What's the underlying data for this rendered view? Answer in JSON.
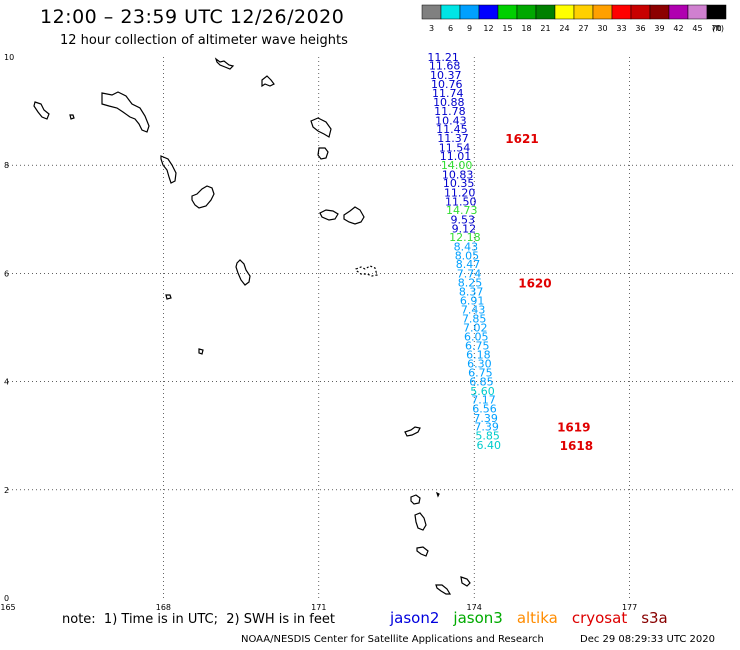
{
  "header": {
    "title": "12:00 – 23:59 UTC 12/26/2020",
    "subtitle": "12 hour collection of altimeter wave heights"
  },
  "legend": {
    "unit": "(ft)",
    "bins": [
      {
        "label": "3",
        "color": "#808080"
      },
      {
        "label": "6",
        "color": "#00e5e5"
      },
      {
        "label": "9",
        "color": "#00a0ff"
      },
      {
        "label": "12",
        "color": "#0000ff"
      },
      {
        "label": "15",
        "color": "#00d000"
      },
      {
        "label": "18",
        "color": "#00a800"
      },
      {
        "label": "21",
        "color": "#008000"
      },
      {
        "label": "24",
        "color": "#ffff00"
      },
      {
        "label": "27",
        "color": "#ffd000"
      },
      {
        "label": "30",
        "color": "#ffa000"
      },
      {
        "label": "33",
        "color": "#ff0000"
      },
      {
        "label": "36",
        "color": "#c80000"
      },
      {
        "label": "39",
        "color": "#8c0000"
      },
      {
        "label": "42",
        "color": "#b000b0"
      },
      {
        "label": "45",
        "color": "#d080d0"
      },
      {
        "label": "70",
        "color": "#000000"
      }
    ]
  },
  "axes": {
    "lon_labels": [
      "165",
      "168",
      "171",
      "174",
      "177"
    ],
    "lat_labels": [
      "0",
      "2",
      "4",
      "6",
      "8",
      "10"
    ]
  },
  "observations": [
    {
      "lon": 173.4,
      "lat": 10.0,
      "value": "11.21",
      "color": "#0000cc"
    },
    {
      "lon": 173.43,
      "lat": 9.84,
      "value": "11.68",
      "color": "#0000cc"
    },
    {
      "lon": 173.45,
      "lat": 9.67,
      "value": "10.37",
      "color": "#0000cc"
    },
    {
      "lon": 173.47,
      "lat": 9.5,
      "value": "10.76",
      "color": "#0000cc"
    },
    {
      "lon": 173.49,
      "lat": 9.33,
      "value": "11.74",
      "color": "#0000cc"
    },
    {
      "lon": 173.51,
      "lat": 9.17,
      "value": "10.88",
      "color": "#0000cc"
    },
    {
      "lon": 173.53,
      "lat": 9.0,
      "value": "11.78",
      "color": "#0000cc"
    },
    {
      "lon": 173.55,
      "lat": 8.83,
      "value": "10.43",
      "color": "#0000cc"
    },
    {
      "lon": 173.57,
      "lat": 8.67,
      "value": "11.45",
      "color": "#0000cc"
    },
    {
      "lon": 173.59,
      "lat": 8.5,
      "value": "11.37",
      "color": "#0000cc"
    },
    {
      "lon": 173.62,
      "lat": 8.33,
      "value": "11.54",
      "color": "#0000cc"
    },
    {
      "lon": 173.64,
      "lat": 8.17,
      "value": "11.01",
      "color": "#0000cc"
    },
    {
      "lon": 173.66,
      "lat": 8.0,
      "value": "14.00",
      "color": "#33dd33"
    },
    {
      "lon": 173.68,
      "lat": 7.83,
      "value": "10.83",
      "color": "#0000cc"
    },
    {
      "lon": 173.7,
      "lat": 7.67,
      "value": "10.35",
      "color": "#0000cc"
    },
    {
      "lon": 173.72,
      "lat": 7.5,
      "value": "11.20",
      "color": "#0000cc"
    },
    {
      "lon": 173.74,
      "lat": 7.33,
      "value": "11.50",
      "color": "#0000cc"
    },
    {
      "lon": 173.76,
      "lat": 7.17,
      "value": "14.73",
      "color": "#33dd33"
    },
    {
      "lon": 173.78,
      "lat": 7.0,
      "value": "9.53",
      "color": "#0000cc"
    },
    {
      "lon": 173.8,
      "lat": 6.83,
      "value": "9.12",
      "color": "#0000cc"
    },
    {
      "lon": 173.82,
      "lat": 6.67,
      "value": "12.18",
      "color": "#33dd33"
    },
    {
      "lon": 173.84,
      "lat": 6.5,
      "value": "8.43",
      "color": "#00a0ff"
    },
    {
      "lon": 173.86,
      "lat": 6.33,
      "value": "8.05",
      "color": "#00a0ff"
    },
    {
      "lon": 173.88,
      "lat": 6.17,
      "value": "8.47",
      "color": "#00a0ff"
    },
    {
      "lon": 173.9,
      "lat": 6.0,
      "value": "7.74",
      "color": "#00a0ff"
    },
    {
      "lon": 173.92,
      "lat": 5.83,
      "value": "8.25",
      "color": "#00a0ff"
    },
    {
      "lon": 173.94,
      "lat": 5.67,
      "value": "8.37",
      "color": "#00a0ff"
    },
    {
      "lon": 173.96,
      "lat": 5.5,
      "value": "6.91",
      "color": "#00a0ff"
    },
    {
      "lon": 173.98,
      "lat": 5.33,
      "value": "7.43",
      "color": "#00a0ff"
    },
    {
      "lon": 174.0,
      "lat": 5.17,
      "value": "7.85",
      "color": "#00a0ff"
    },
    {
      "lon": 174.02,
      "lat": 5.0,
      "value": "7.02",
      "color": "#00a0ff"
    },
    {
      "lon": 174.04,
      "lat": 4.83,
      "value": "6.05",
      "color": "#00a0ff"
    },
    {
      "lon": 174.06,
      "lat": 4.67,
      "value": "6.75",
      "color": "#00a0ff"
    },
    {
      "lon": 174.08,
      "lat": 4.5,
      "value": "6.18",
      "color": "#00a0ff"
    },
    {
      "lon": 174.1,
      "lat": 4.33,
      "value": "6.30",
      "color": "#00a0ff"
    },
    {
      "lon": 174.12,
      "lat": 4.17,
      "value": "6.75",
      "color": "#00a0ff"
    },
    {
      "lon": 174.14,
      "lat": 4.0,
      "value": "6.85",
      "color": "#00a0ff"
    },
    {
      "lon": 174.16,
      "lat": 3.83,
      "value": "5.60",
      "color": "#00cccc"
    },
    {
      "lon": 174.18,
      "lat": 3.67,
      "value": "7.17",
      "color": "#00a0ff"
    },
    {
      "lon": 174.2,
      "lat": 3.5,
      "value": "6.56",
      "color": "#00a0ff"
    },
    {
      "lon": 174.22,
      "lat": 3.33,
      "value": "7.39",
      "color": "#00a0ff"
    },
    {
      "lon": 174.24,
      "lat": 3.17,
      "value": "7.39",
      "color": "#00a0ff"
    },
    {
      "lon": 174.26,
      "lat": 3.0,
      "value": "5.85",
      "color": "#00cccc"
    },
    {
      "lon": 174.28,
      "lat": 2.83,
      "value": "6.40",
      "color": "#00cccc"
    }
  ],
  "tracks": [
    {
      "label": "1621",
      "lon": 174.6,
      "lat": 8.5
    },
    {
      "label": "1620",
      "lon": 174.85,
      "lat": 5.83
    },
    {
      "label": "1619",
      "lon": 175.6,
      "lat": 3.17
    },
    {
      "label": "1618",
      "lon": 175.65,
      "lat": 2.83
    }
  ],
  "footer": {
    "note": "note:  1) Time is in UTC;  2) SWH is in feet",
    "satellites": [
      {
        "name": "jason2",
        "color": "#0000dd"
      },
      {
        "name": "jason3",
        "color": "#00aa00"
      },
      {
        "name": "altika",
        "color": "#ff8c00"
      },
      {
        "name": "cryosat",
        "color": "#dd0000"
      },
      {
        "name": "s3a",
        "color": "#880000"
      }
    ],
    "credit": "NOAA/NESDIS Center for Satellite Applications and Research",
    "timestamp": "Dec 29 08:29:33 UTC 2020"
  }
}
